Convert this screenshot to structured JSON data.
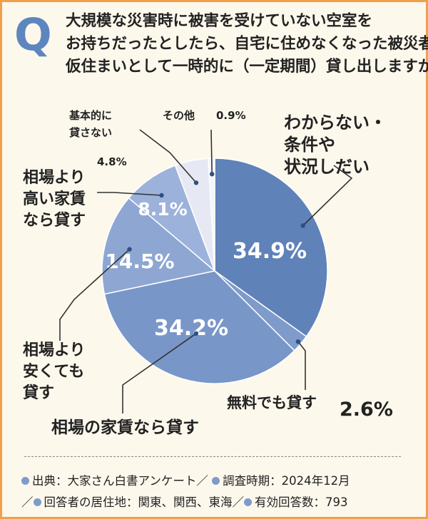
{
  "question": {
    "marker": "Q",
    "lines": [
      "大規模な災害時に被害を受けていない空室を",
      "お持ちだったとしたら、自宅に住めなくなった被災者の",
      "仮住まいとして一時的に（一定期間）貸し出しますか？"
    ]
  },
  "chart_data": {
    "type": "pie",
    "unit": "%",
    "slices": [
      {
        "label": "わからない・条件や状況しだい",
        "label_lines": [
          "わからない・",
          "条件や",
          "状況しだい"
        ],
        "value": 34.9,
        "color": "#5f82b8"
      },
      {
        "label": "無料でも貸す",
        "label_lines": [
          "無料でも貸す"
        ],
        "value": 2.6,
        "color": "#7e9bcb"
      },
      {
        "label": "相場の家賃なら貸す",
        "label_lines": [
          "相場の家賃なら貸す"
        ],
        "value": 34.2,
        "color": "#7896c8"
      },
      {
        "label": "相場より安くても貸す",
        "label_lines": [
          "相場より",
          "安くても",
          "貸す"
        ],
        "value": 14.5,
        "color": "#8ea6d2"
      },
      {
        "label": "相場より高い家賃なら貸す",
        "label_lines": [
          "相場より",
          "高い家賃",
          "なら貸す"
        ],
        "value": 8.1,
        "color": "#9cb2da"
      },
      {
        "label": "基本的に貸さない",
        "label_lines": [
          "基本的に",
          "貸さない"
        ],
        "value": 4.8,
        "color": "#e6e9f3"
      },
      {
        "label": "その他",
        "label_lines": [
          "その他"
        ],
        "value": 0.9,
        "color": "#f4f5f9"
      }
    ]
  },
  "footer": {
    "items": [
      "出典：大家さん白書アンケート",
      "調査時期：2024年12月",
      "回答者の居住地：関東、関西、東海",
      "有効回答数：793"
    ],
    "separator": "／"
  }
}
